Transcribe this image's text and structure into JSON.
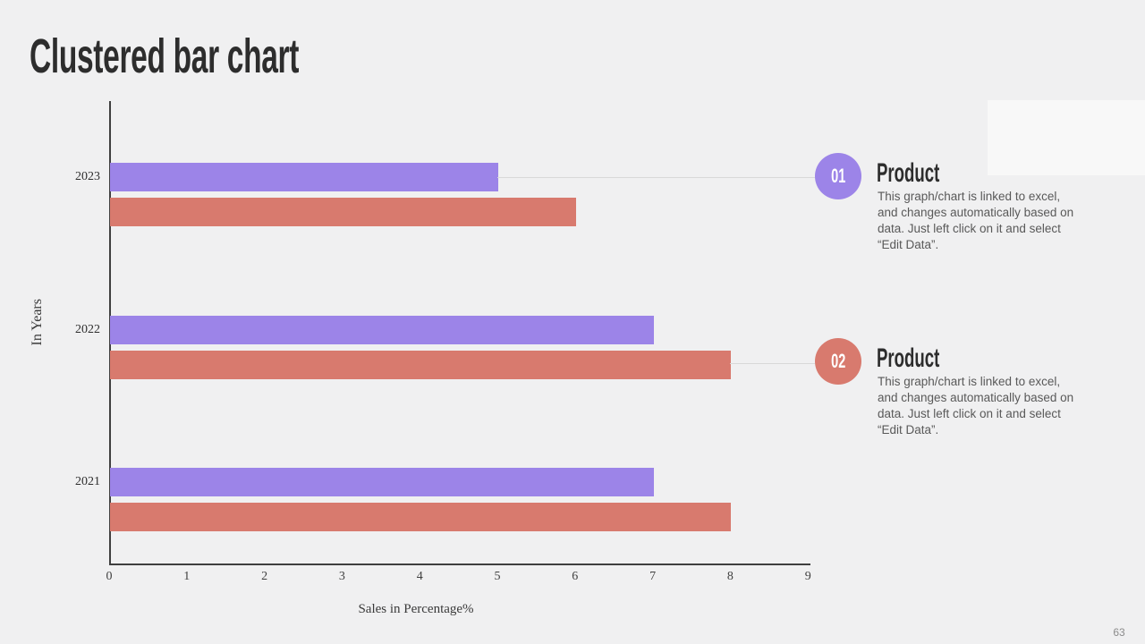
{
  "slide": {
    "title": "Clustered bar chart",
    "page_number": "63",
    "background_color": "#f0f0f1"
  },
  "chart_data": {
    "type": "bar",
    "orientation": "horizontal",
    "categories": [
      "2023",
      "2022",
      "2021"
    ],
    "series": [
      {
        "name": "Product 01",
        "color": "#9c84e8",
        "values": [
          5,
          7,
          7
        ]
      },
      {
        "name": "Product 02",
        "color": "#d87a6e",
        "values": [
          6,
          8,
          8
        ]
      }
    ],
    "xlabel": "Sales in Percentage%",
    "ylabel": "In Years",
    "xlim": [
      0,
      9
    ],
    "xticks": [
      "0",
      "1",
      "2",
      "3",
      "4",
      "5",
      "6",
      "7",
      "8",
      "9"
    ],
    "grid": false,
    "legend": "none"
  },
  "callouts": [
    {
      "number": "01",
      "accent_color": "#9c84e8",
      "title": "Product",
      "body": "This graph/chart is linked to excel, and changes automatically based on data. Just left click on it and select “Edit Data”."
    },
    {
      "number": "02",
      "accent_color": "#d87a6e",
      "title": "Product",
      "body": "This graph/chart is linked to excel, and changes automatically based on data. Just left click on it and select “Edit Data”."
    }
  ]
}
